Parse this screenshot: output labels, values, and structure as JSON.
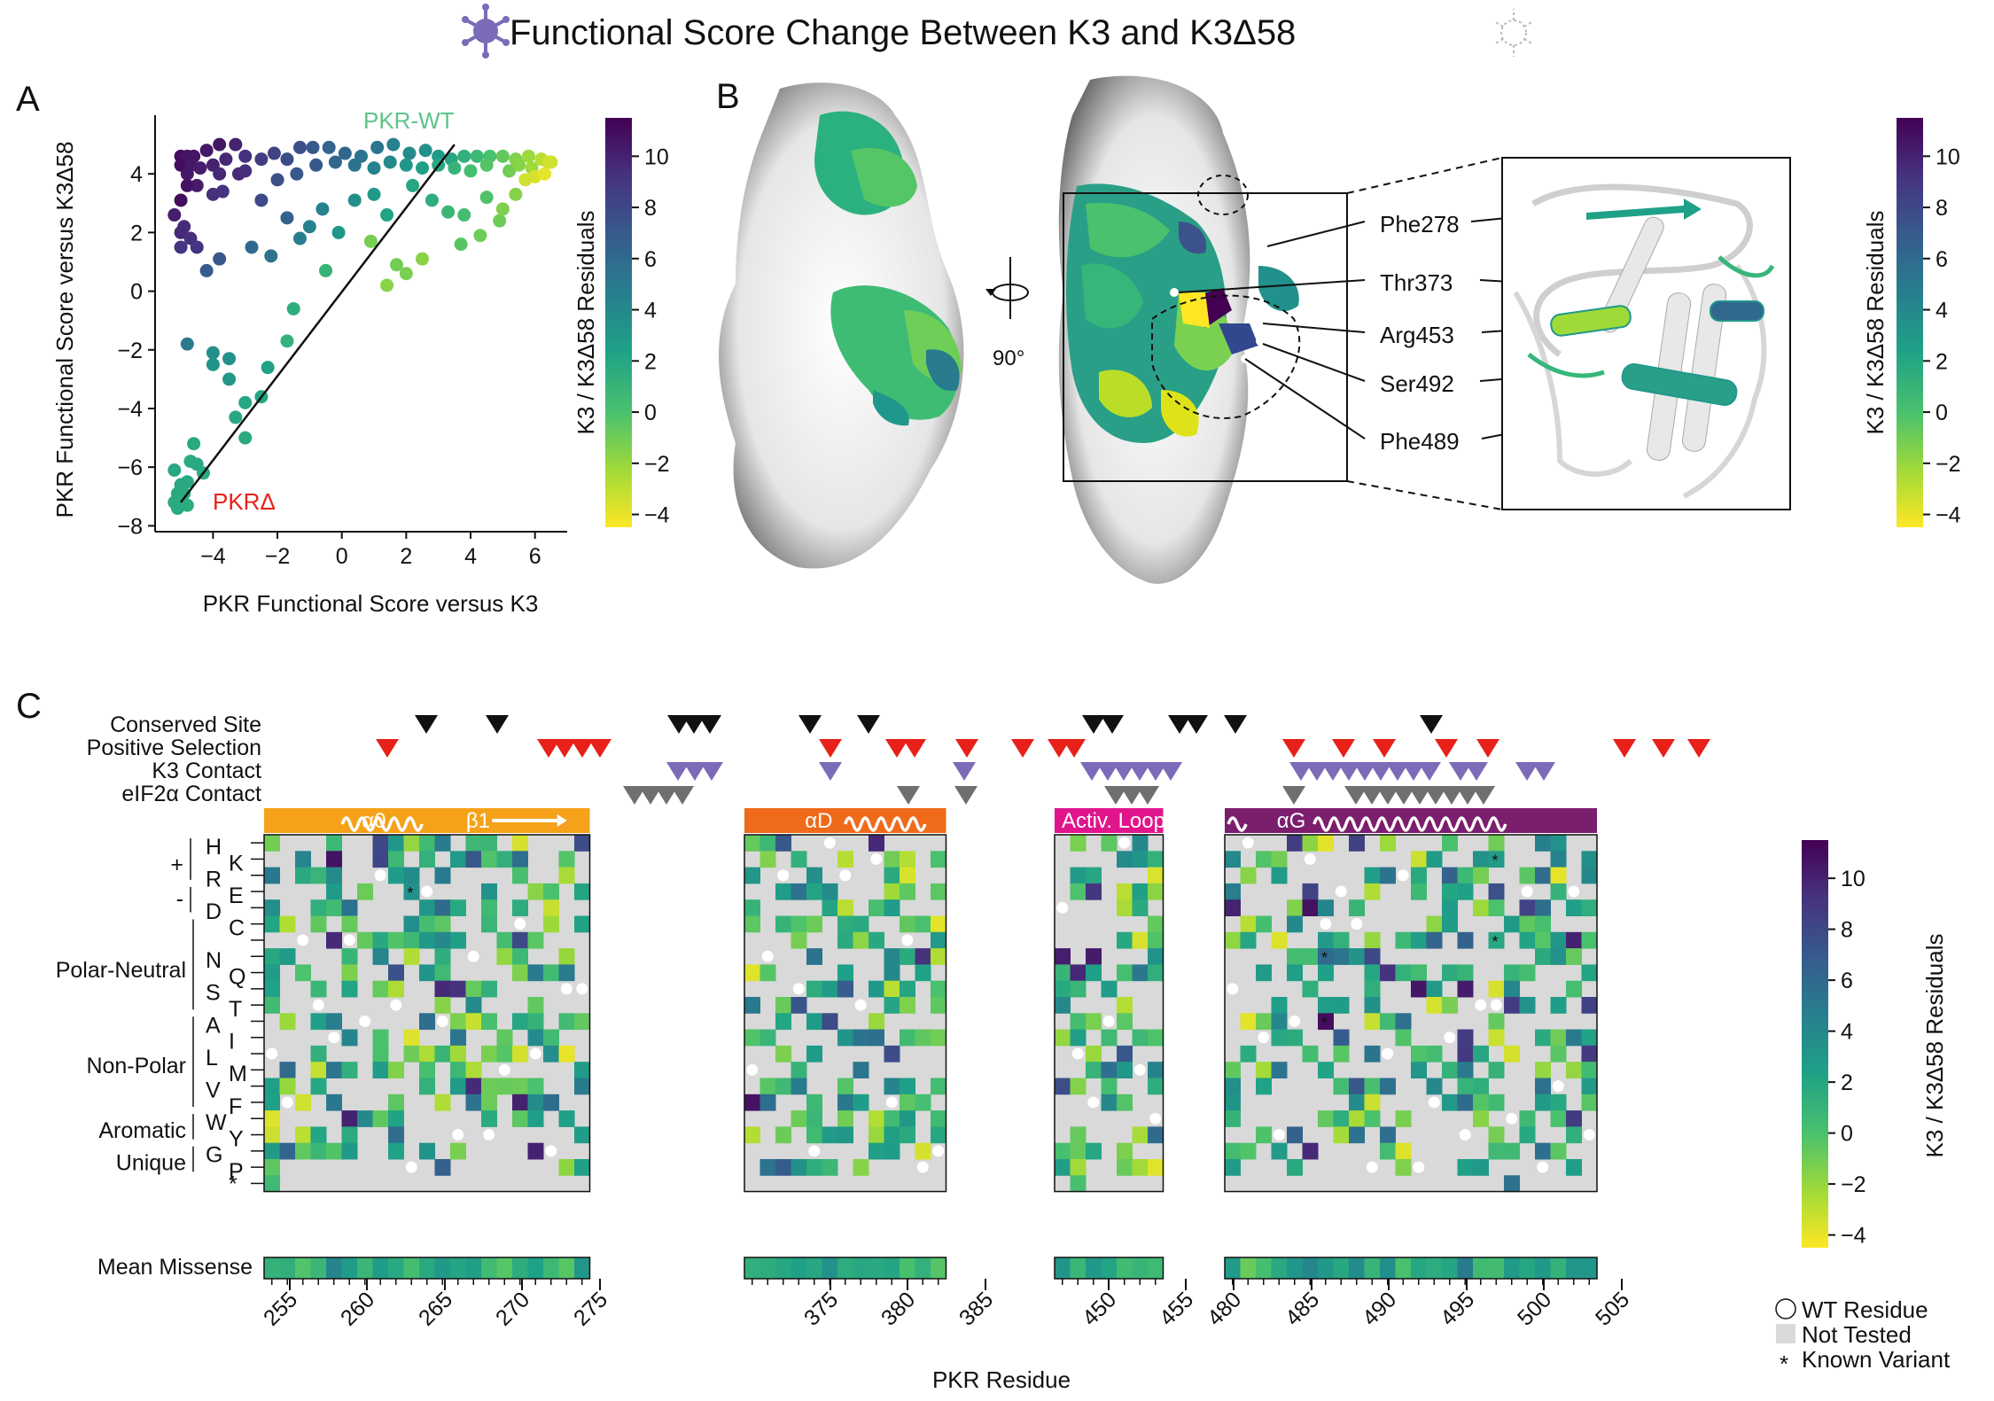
{
  "title": "Functional Score Change Between K3 and K3Δ58",
  "panels": {
    "a_label": "A",
    "b_label": "B",
    "c_label": "C"
  },
  "colorbar": {
    "label": "K3 / K3Δ58 Residuals",
    "ticks": [
      "10",
      "8",
      "6",
      "4",
      "2",
      "0",
      "−2",
      "−4"
    ],
    "ticks_c": [
      "10",
      "8",
      "6",
      "4",
      "2",
      "0",
      "−2",
      "−4"
    ],
    "colors": [
      "#440154",
      "#46327e",
      "#365c8d",
      "#277f8e",
      "#1fa187",
      "#4ac16d",
      "#a0da39",
      "#fde725"
    ]
  },
  "scatter": {
    "xlabel": "PKR Functional Score versus K3",
    "ylabel": "PKR Functional Score versus K3Δ58",
    "xticks": [
      "−4",
      "−2",
      "0",
      "2",
      "4",
      "6"
    ],
    "yticks": [
      "4",
      "2",
      "0",
      "−2",
      "−4",
      "−6",
      "−8"
    ],
    "label_wt": "PKR-WT",
    "label_del": "PKRΔ",
    "wt_color": "#5cc48a",
    "del_color": "#e8201a"
  },
  "chart_data": {
    "type": "scatter",
    "title": "Functional Score Change Between K3 and K3Δ58",
    "xlabel": "PKR Functional Score versus K3",
    "ylabel": "PKR Functional Score versus K3Δ58",
    "xlim": [
      -5.8,
      7.0
    ],
    "ylim": [
      -8.2,
      6.0
    ],
    "fit_line": {
      "x": [
        -5.0,
        3.5
      ],
      "y": [
        -7.2,
        5.0
      ]
    },
    "points": [
      [
        -5.0,
        4.6,
        11
      ],
      [
        -4.8,
        4.6,
        10.6
      ],
      [
        -4.6,
        4.6,
        10.5
      ],
      [
        -4.2,
        4.8,
        10.4
      ],
      [
        -3.8,
        5.0,
        10.5
      ],
      [
        -3.3,
        5.0,
        10.0
      ],
      [
        -5.0,
        4.3,
        11
      ],
      [
        -4.7,
        4.3,
        10.4
      ],
      [
        -4.4,
        4.2,
        10.2
      ],
      [
        -4.0,
        4.3,
        10.0
      ],
      [
        -3.6,
        4.5,
        9.7
      ],
      [
        -3.0,
        4.6,
        9.2
      ],
      [
        -2.5,
        4.5,
        8.6
      ],
      [
        -2.1,
        4.7,
        8.3
      ],
      [
        -1.7,
        4.5,
        7.8
      ],
      [
        -1.3,
        4.9,
        7.6
      ],
      [
        -0.9,
        4.9,
        7.1
      ],
      [
        -0.4,
        4.9,
        6.4
      ],
      [
        0.1,
        4.7,
        6.2
      ],
      [
        0.6,
        4.6,
        5.2
      ],
      [
        1.1,
        4.9,
        5.2
      ],
      [
        1.6,
        5.0,
        4.6
      ],
      [
        2.1,
        4.7,
        3.9
      ],
      [
        2.6,
        4.8,
        3.5
      ],
      [
        3.0,
        4.6,
        2.8
      ],
      [
        3.4,
        4.5,
        2.0
      ],
      [
        3.8,
        4.6,
        1.3
      ],
      [
        4.2,
        4.6,
        0.7
      ],
      [
        4.6,
        4.6,
        0.1
      ],
      [
        5.0,
        4.6,
        -0.6
      ],
      [
        5.4,
        4.5,
        -1.3
      ],
      [
        5.8,
        4.6,
        -2.1
      ],
      [
        6.2,
        4.5,
        -2.8
      ],
      [
        6.4,
        4.4,
        -3.3
      ],
      [
        5.9,
        4.2,
        -2.2
      ],
      [
        5.2,
        4.1,
        -0.9
      ],
      [
        -0.8,
        4.3,
        7.1
      ],
      [
        -0.2,
        4.4,
        6.2
      ],
      [
        0.4,
        4.3,
        5.4
      ],
      [
        1.0,
        4.2,
        4.4
      ],
      [
        1.5,
        4.4,
        3.9
      ],
      [
        2.0,
        4.3,
        3.1
      ],
      [
        2.5,
        4.2,
        2.4
      ],
      [
        3.0,
        4.3,
        1.9
      ],
      [
        3.5,
        4.2,
        1.1
      ],
      [
        4.0,
        4.1,
        0.3
      ],
      [
        4.5,
        4.3,
        -0.2
      ],
      [
        5.5,
        4.3,
        -1.6
      ],
      [
        6.0,
        3.9,
        -3.6
      ],
      [
        6.3,
        4.0,
        -3.9
      ],
      [
        5.7,
        3.8,
        -3.4
      ],
      [
        6.5,
        4.4,
        -3.4
      ],
      [
        -4.8,
        4.0,
        10.4
      ],
      [
        -4.5,
        3.6,
        10.3
      ],
      [
        -4.8,
        3.6,
        10.7
      ],
      [
        -3.8,
        4.0,
        9.7
      ],
      [
        -3.2,
        4.0,
        9.6
      ],
      [
        -3.0,
        4.1,
        9.3
      ],
      [
        -3.7,
        3.4,
        9.1
      ],
      [
        -4.0,
        3.3,
        9.3
      ],
      [
        -2.5,
        3.1,
        7.9
      ],
      [
        -1.7,
        2.5,
        6.6
      ],
      [
        -1.4,
        4.0,
        7.2
      ],
      [
        -2.0,
        3.8,
        7.6
      ],
      [
        -5.0,
        3.1,
        11
      ],
      [
        -4.9,
        2.2,
        9.5
      ],
      [
        -5.0,
        1.5,
        9.1
      ],
      [
        -5.2,
        2.6,
        10.1
      ],
      [
        -5.0,
        2.0,
        9.6
      ],
      [
        -4.7,
        1.8,
        9.3
      ],
      [
        -4.5,
        1.5,
        9.1
      ],
      [
        -3.8,
        1.1,
        7.2
      ],
      [
        -4.2,
        0.7,
        6.9
      ],
      [
        -2.8,
        1.5,
        6.1
      ],
      [
        -2.2,
        1.2,
        5.4
      ],
      [
        -1.3,
        1.8,
        4.7
      ],
      [
        -1.0,
        2.2,
        4.4
      ],
      [
        -0.6,
        2.8,
        4.5
      ],
      [
        -0.1,
        2.0,
        3.1
      ],
      [
        0.4,
        3.1,
        3.6
      ],
      [
        1.0,
        3.3,
        2.9
      ],
      [
        1.4,
        2.6,
        2.2
      ],
      [
        2.2,
        3.6,
        2.0
      ],
      [
        2.8,
        3.1,
        1.5
      ],
      [
        3.3,
        2.7,
        0.9
      ],
      [
        3.8,
        2.6,
        0.4
      ],
      [
        4.5,
        3.2,
        -0.1
      ],
      [
        4.9,
        2.4,
        -0.9
      ],
      [
        3.7,
        1.6,
        -0.3
      ],
      [
        4.3,
        1.9,
        -0.9
      ],
      [
        5.0,
        2.8,
        -1.3
      ],
      [
        5.4,
        3.3,
        -1.5
      ],
      [
        2.0,
        0.6,
        -1.2
      ],
      [
        2.5,
        1.1,
        -1.6
      ],
      [
        1.4,
        0.2,
        -1.6
      ],
      [
        0.9,
        1.7,
        -1.1
      ],
      [
        1.7,
        0.9,
        -1.0
      ],
      [
        -0.5,
        0.7,
        1.1
      ],
      [
        -4.8,
        -1.8,
        5.0
      ],
      [
        -4.0,
        -2.1,
        3.6
      ],
      [
        -3.5,
        -2.3,
        3.5
      ],
      [
        -4.0,
        -2.5,
        3.3
      ],
      [
        -3.5,
        -3.0,
        3.1
      ],
      [
        -2.3,
        -2.6,
        2.3
      ],
      [
        -1.5,
        -0.6,
        1.5
      ],
      [
        -3.3,
        -4.3,
        1.9
      ],
      [
        -3.0,
        -3.8,
        2.0
      ],
      [
        -3.0,
        -5.0,
        1.7
      ],
      [
        -2.5,
        -3.6,
        2.1
      ],
      [
        -1.7,
        -1.7,
        1.2
      ],
      [
        -4.6,
        -5.2,
        1.8
      ],
      [
        -4.7,
        -5.8,
        1.7
      ],
      [
        -4.8,
        -6.5,
        1.8
      ],
      [
        -5.0,
        -6.6,
        1.9
      ],
      [
        -5.1,
        -6.9,
        1.8
      ],
      [
        -5.0,
        -7.1,
        1.8
      ],
      [
        -5.2,
        -7.2,
        1.7
      ],
      [
        -4.8,
        -7.3,
        1.6
      ],
      [
        -5.1,
        -7.4,
        1.8
      ],
      [
        -4.9,
        -6.9,
        1.7
      ],
      [
        -4.5,
        -5.9,
        1.9
      ],
      [
        -4.3,
        -6.2,
        1.7
      ],
      [
        -5.2,
        -6.1,
        1.9
      ]
    ]
  },
  "structure": {
    "rotation": "90°",
    "labels": [
      "Phe278",
      "Thr373",
      "Arg453",
      "Ser492",
      "Phe489"
    ]
  },
  "heatmap": {
    "row_group_labels": [
      "+",
      "-",
      "Polar-Neutral",
      "Non-Polar",
      "Aromatic",
      "Unique"
    ],
    "aa_left": [
      "H",
      "",
      "R",
      "",
      "D",
      "",
      "",
      "N",
      "",
      "S",
      "",
      "A",
      "",
      "L",
      "",
      "V",
      "",
      "W",
      "",
      "G",
      "",
      ""
    ],
    "aa_right": [
      "",
      "K",
      "",
      "E",
      "",
      "C",
      "",
      "",
      "Q",
      "",
      "T",
      "",
      "I",
      "",
      "M",
      "",
      "F",
      "",
      "Y",
      "",
      "P",
      ""
    ],
    "stop_symbol": "*",
    "annotation_labels": [
      "Conserved Site",
      "Positive Selection",
      "K3 Contact",
      "eIF2α Contact"
    ],
    "annotation_colors": [
      "#111111",
      "#e8201a",
      "#7b6bb8",
      "#6f6f6f"
    ],
    "domains": [
      {
        "label": "α0",
        "label2": "β1",
        "color": "#f5a21a"
      },
      {
        "label": "αD",
        "color": "#ef6a1a"
      },
      {
        "label": "Activ. Loop",
        "color": "#e0158c"
      },
      {
        "label": "αG",
        "color": "#7b1e6e"
      }
    ],
    "mean_label": "Mean Missense",
    "xlabel": "PKR Residue",
    "xticks": [
      "255",
      "260",
      "265",
      "270",
      "275",
      "375",
      "380",
      "385",
      "450",
      "455",
      "480",
      "485",
      "490",
      "495",
      "500",
      "505"
    ],
    "not_tested_color": "#d9d9d9",
    "legend": {
      "wt": "WT Residue",
      "not_tested": "Not Tested",
      "known_variant": "Known Variant"
    }
  }
}
